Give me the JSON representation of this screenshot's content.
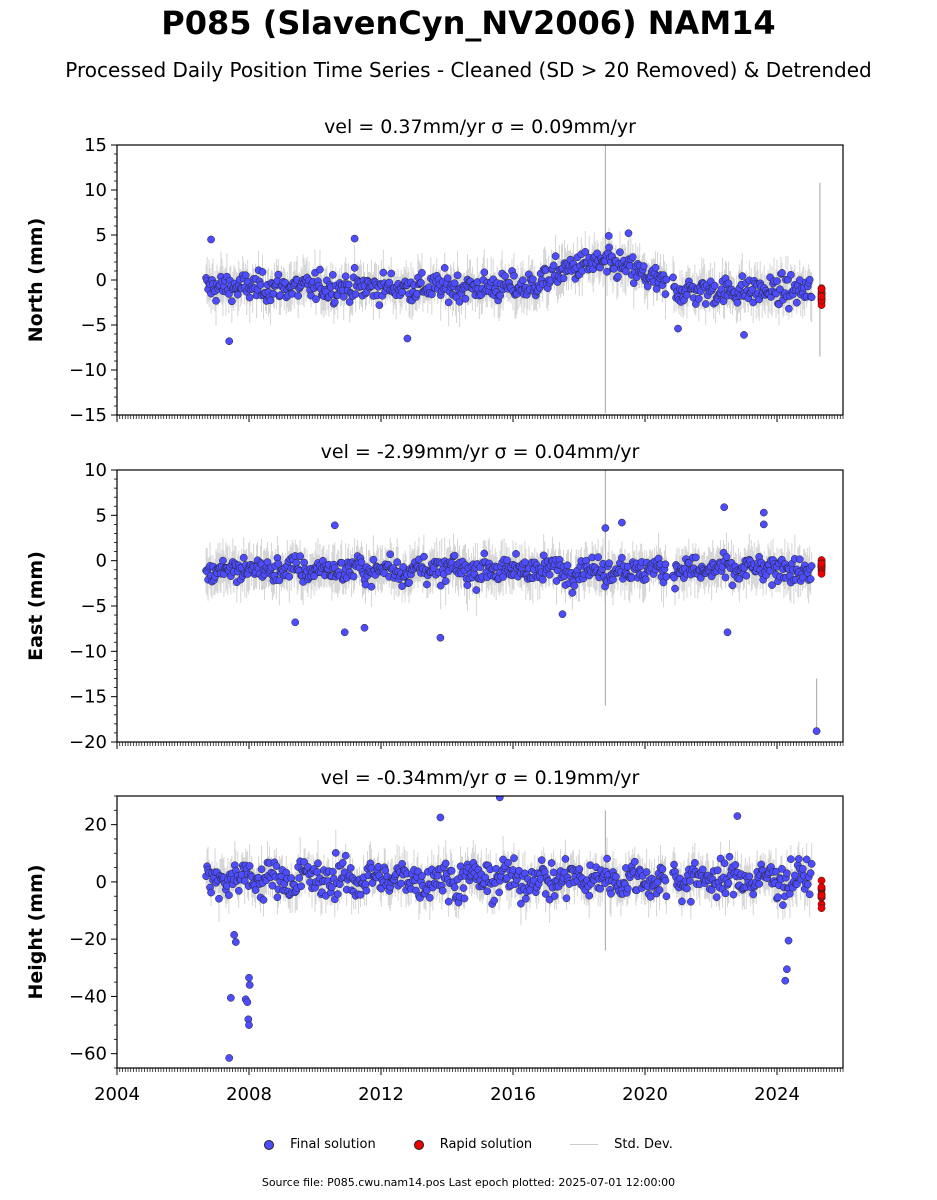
{
  "figure": {
    "title": "P085 (SlavenCyn_NV2006) NAM14",
    "subtitle": "Processed Daily Position Time Series - Cleaned (SD > 20 Removed) & Detrended",
    "source": "Source file: P085.cwu.nam14.pos  Last epoch plotted: 2025-07-01 12:00:00"
  },
  "legend": {
    "final": "Final solution",
    "rapid": "Rapid solution",
    "std": "Std. Dev."
  },
  "colors": {
    "final": "#4d4dff",
    "rapid": "#ee0000",
    "stddev": "#b3b3b3",
    "outline": "#222222"
  },
  "chart_data": [
    {
      "type": "scatter",
      "panel": "north",
      "title": "vel = 0.37mm/yr   σ = 0.09mm/yr",
      "ylabel": "North (mm)",
      "xlim": [
        2004.0,
        2026.0
      ],
      "ylim": [
        -15,
        15
      ],
      "yticks": [
        -15,
        -10,
        -5,
        0,
        5,
        10,
        15
      ],
      "xticks": [
        2004,
        2008,
        2012,
        2016,
        2020,
        2024
      ],
      "show_xtick_labels": false,
      "grid": false,
      "legend": "below",
      "outliers": [
        [
          2006.85,
          4.5
        ],
        [
          2007.4,
          -6.8
        ],
        [
          2012.8,
          -6.5
        ],
        [
          2011.2,
          4.6
        ],
        [
          2021.0,
          -5.4
        ],
        [
          2023.0,
          -6.1
        ],
        [
          2019.5,
          5.2
        ],
        [
          2018.9,
          4.9
        ]
      ],
      "spikes": [
        [
          2018.8,
          -14.8,
          15.0
        ],
        [
          2025.3,
          -8.5,
          10.8
        ]
      ]
    },
    {
      "type": "scatter",
      "panel": "east",
      "title": "vel = -2.99mm/yr   σ = 0.04mm/yr",
      "ylabel": "East (mm)",
      "xlim": [
        2004.0,
        2026.0
      ],
      "ylim": [
        -20,
        10
      ],
      "yticks": [
        -20,
        -15,
        -10,
        -5,
        0,
        5,
        10
      ],
      "xticks": [
        2004,
        2008,
        2012,
        2016,
        2020,
        2024
      ],
      "show_xtick_labels": false,
      "grid": false,
      "outliers": [
        [
          2009.4,
          -6.8
        ],
        [
          2010.6,
          3.9
        ],
        [
          2010.9,
          -7.9
        ],
        [
          2011.5,
          -7.4
        ],
        [
          2013.8,
          -8.5
        ],
        [
          2017.5,
          -5.9
        ],
        [
          2022.4,
          5.9
        ],
        [
          2022.5,
          -7.9
        ],
        [
          2023.6,
          5.3
        ],
        [
          2023.6,
          4.0
        ],
        [
          2025.2,
          -18.8
        ],
        [
          2018.8,
          3.6
        ],
        [
          2019.3,
          4.2
        ]
      ],
      "spikes": [
        [
          2018.8,
          -16.0,
          10.0
        ],
        [
          2025.2,
          -18.8,
          -13.0
        ]
      ]
    },
    {
      "type": "scatter",
      "panel": "height",
      "title": "vel = -0.34mm/yr   σ = 0.19mm/yr",
      "ylabel": "Height (mm)",
      "xlim": [
        2004.0,
        2026.0
      ],
      "ylim": [
        -65,
        30
      ],
      "yticks": [
        -60,
        -40,
        -20,
        0,
        20
      ],
      "xticks": [
        2004,
        2008,
        2012,
        2016,
        2020,
        2024
      ],
      "show_xtick_labels": true,
      "grid": false,
      "outliers": [
        [
          2007.4,
          -61.5
        ],
        [
          2007.45,
          -40.5
        ],
        [
          2007.55,
          -18.5
        ],
        [
          2007.6,
          -21.0
        ],
        [
          2007.9,
          -41.0
        ],
        [
          2007.95,
          -42.0
        ],
        [
          2007.98,
          -48.0
        ],
        [
          2008.0,
          -50.0
        ],
        [
          2008.0,
          -33.5
        ],
        [
          2008.02,
          -36.0
        ],
        [
          2015.6,
          29.5
        ],
        [
          2024.25,
          -34.5
        ],
        [
          2024.3,
          -30.5
        ],
        [
          2024.35,
          -20.5
        ],
        [
          2022.8,
          23.0
        ],
        [
          2013.8,
          22.5
        ]
      ],
      "spikes": [
        [
          2018.8,
          -24.0,
          25.0
        ]
      ]
    }
  ]
}
